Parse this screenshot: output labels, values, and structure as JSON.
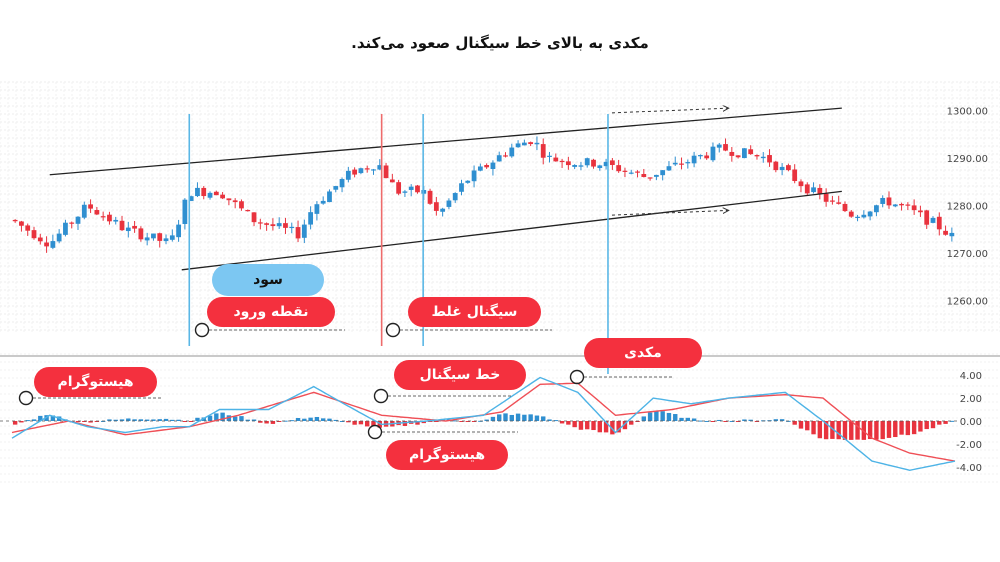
{
  "caption": "مکدی به بالای خط سیگنال صعود می‌کند.",
  "labels": {
    "profit": "سود",
    "entry_point": "نقطه ورود",
    "false_signal": "سیگنال غلط",
    "macd": "مکدی",
    "signal_line": "خط سیگنال",
    "histogram_left": "هیستوگرام",
    "histogram_center": "هیستوگرام"
  },
  "colors": {
    "bull": "#2f8fd0",
    "bear": "#e8333e",
    "macd_line": "#4db3e6",
    "signal_line": "#ef4f56",
    "label_red": "#f4303e",
    "label_blue": "#7cc7f2",
    "vertical_blue": "#5ab7e6",
    "vertical_red": "#ee6b6b"
  },
  "chart_data": [
    {
      "type": "candlestick",
      "title": "",
      "y_ticks": [
        "1300.00",
        "1290.00",
        "1280.00",
        "1270.00",
        "1260.00"
      ],
      "y_tick_values": [
        1300,
        1290,
        1280,
        1270,
        1260
      ],
      "ylim": [
        1253,
        1306
      ],
      "grid": true,
      "candle_count": 150,
      "price_path": [
        [
          0,
          1277
        ],
        [
          10,
          1272
        ],
        [
          20,
          1280
        ],
        [
          30,
          1275
        ],
        [
          42,
          1272
        ],
        [
          47,
          1283
        ],
        [
          55,
          1283
        ],
        [
          64,
          1277
        ],
        [
          76,
          1274
        ],
        [
          80,
          1280
        ],
        [
          90,
          1287
        ],
        [
          97,
          1289
        ],
        [
          102,
          1283
        ],
        [
          109,
          1283
        ],
        [
          113,
          1278
        ],
        [
          120,
          1285
        ],
        [
          132,
          1292
        ],
        [
          138,
          1294
        ],
        [
          142,
          1290
        ],
        [
          150,
          1289
        ],
        [
          155,
          1289
        ],
        [
          160,
          1288
        ],
        [
          168,
          1286
        ],
        [
          178,
          1289
        ],
        [
          188,
          1292
        ],
        [
          200,
          1290
        ],
        [
          212,
          1283
        ],
        [
          223,
          1278
        ],
        [
          232,
          1281
        ],
        [
          238,
          1279
        ],
        [
          245,
          1276
        ],
        [
          250,
          1273
        ]
      ],
      "channel": {
        "upper": [
          [
            10,
            1286.5
          ],
          [
            220,
            1300.5
          ]
        ],
        "lower": [
          [
            45,
            1266.5
          ],
          [
            220,
            1283
          ]
        ]
      },
      "verticals": [
        {
          "x": 47,
          "color": "blue"
        },
        {
          "x": 98,
          "color": "red"
        },
        {
          "x": 109,
          "color": "blue"
        },
        {
          "x": 158,
          "color": "blue"
        }
      ],
      "arrows": [
        {
          "x1": 158,
          "y1": 1299.5,
          "x2": 190,
          "y2": 1300.5
        },
        {
          "x1": 158,
          "y1": 1278,
          "x2": 190,
          "y2": 1279
        }
      ]
    },
    {
      "type": "macd",
      "y_ticks": [
        "4.00",
        "2.00",
        "0.00",
        "-2.00",
        "-4.00"
      ],
      "y_tick_values": [
        4,
        2,
        0,
        -2,
        -4
      ],
      "ylim": [
        -5.5,
        5.5
      ],
      "macd_path": [
        [
          0,
          -1.5
        ],
        [
          10,
          0.5
        ],
        [
          20,
          -0.5
        ],
        [
          30,
          -1
        ],
        [
          40,
          -0.5
        ],
        [
          47,
          -0.5
        ],
        [
          55,
          1
        ],
        [
          68,
          1
        ],
        [
          80,
          3
        ],
        [
          88,
          1.5
        ],
        [
          98,
          -0.3
        ],
        [
          110,
          0
        ],
        [
          125,
          0.5
        ],
        [
          140,
          3.8
        ],
        [
          150,
          2.5
        ],
        [
          160,
          -1
        ],
        [
          170,
          2
        ],
        [
          180,
          1.5
        ],
        [
          190,
          2
        ],
        [
          205,
          2.5
        ],
        [
          215,
          0
        ],
        [
          228,
          -3.5
        ],
        [
          238,
          -4.3
        ],
        [
          250,
          -3.5
        ]
      ],
      "signal_path": [
        [
          0,
          -1
        ],
        [
          15,
          0
        ],
        [
          30,
          -1.2
        ],
        [
          47,
          -0.5
        ],
        [
          60,
          0.5
        ],
        [
          80,
          2.5
        ],
        [
          98,
          0.5
        ],
        [
          115,
          0
        ],
        [
          130,
          0.8
        ],
        [
          140,
          3.2
        ],
        [
          150,
          3.3
        ],
        [
          160,
          0.5
        ],
        [
          175,
          1
        ],
        [
          190,
          2
        ],
        [
          205,
          2.3
        ],
        [
          215,
          2
        ],
        [
          228,
          -1.5
        ],
        [
          238,
          -2.8
        ],
        [
          250,
          -3.5
        ]
      ]
    }
  ]
}
